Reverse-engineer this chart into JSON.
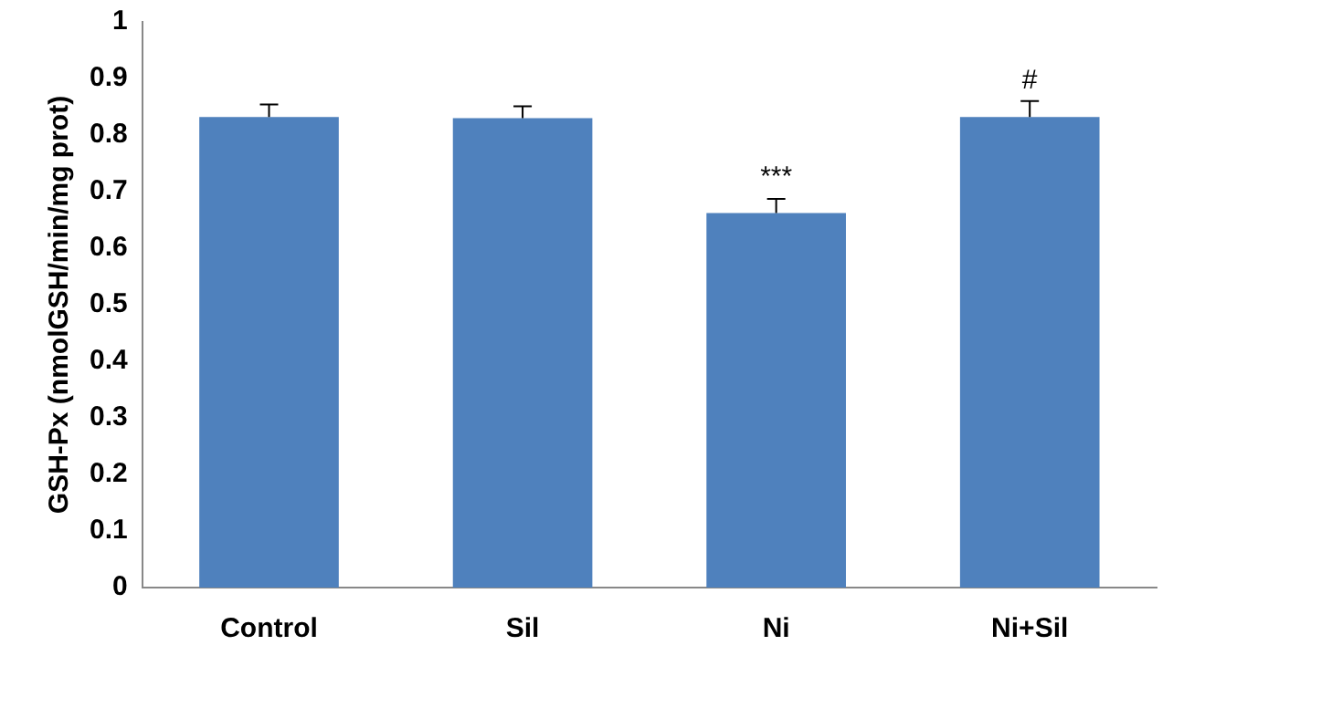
{
  "chart_data": {
    "type": "bar",
    "ylabel": "GSH-Px (nmolGSH/min/mg prot)",
    "categories": [
      "Control",
      "Sil",
      "Ni",
      "Ni+Sil"
    ],
    "values": [
      0.832,
      0.83,
      0.662,
      0.832
    ],
    "errors": [
      0.022,
      0.021,
      0.025,
      0.028
    ],
    "color": "#4f81bd",
    "ylim": [
      0,
      1
    ],
    "yticks": [
      0,
      0.1,
      0.2,
      0.3,
      0.4,
      0.5,
      0.6,
      0.7,
      0.8,
      0.9,
      1
    ],
    "grid": false,
    "legend": false,
    "annotations": [
      {
        "text": "***",
        "x": "Ni",
        "y": 0.7
      },
      {
        "text": "#",
        "x": "Ni+Sil",
        "y": 0.872
      }
    ]
  }
}
